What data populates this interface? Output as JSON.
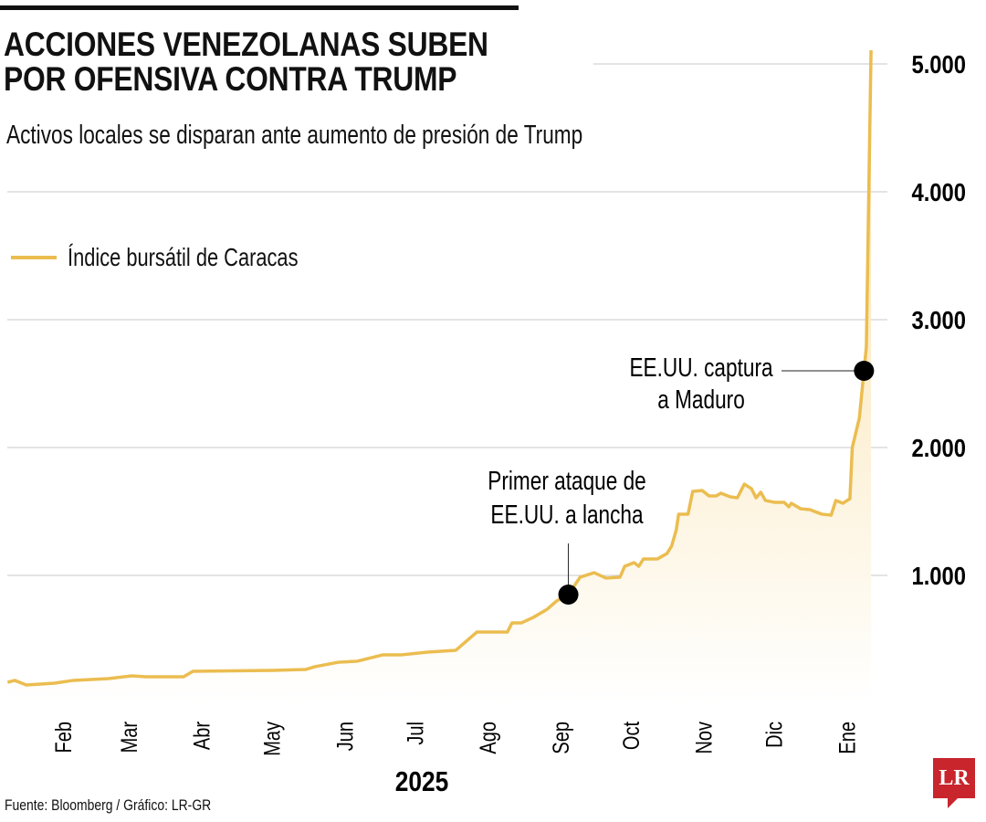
{
  "title_lines": [
    "ACCIONES VENEZOLANAS SUBEN",
    "POR OFENSIVA CONTRA TRUMP"
  ],
  "subtitle": "Activos locales se disparan ante aumento de presión de Trump",
  "source": "Fuente: Bloomberg / Gráfico: LR-GR",
  "logo_text": "LR",
  "colors": {
    "line": "#ebbd50",
    "fill_top": "#f9dd9c",
    "grid": "#c8c8c8",
    "marker": "#000000",
    "logo": "#c8252c"
  },
  "chart_data": {
    "type": "area",
    "title": "ACCIONES VENEZOLANAS SUBEN POR OFENSIVA CONTRA TRUMP",
    "subtitle": "Activos locales se disparan ante aumento de presión de Trump",
    "xlabel": "2025",
    "ylabel": "",
    "ylim": [
      0,
      5000
    ],
    "yticks": [
      1000,
      2000,
      3000,
      4000,
      5000
    ],
    "ytick_labels": [
      "1.000",
      "2.000",
      "3.000",
      "4.000",
      "5.000"
    ],
    "xticks": [
      "2025-02-01",
      "2025-03-01",
      "2025-04-01",
      "2025-05-01",
      "2025-06-01",
      "2025-07-01",
      "2025-08-01",
      "2025-09-01",
      "2025-10-01",
      "2025-11-01",
      "2025-12-01",
      "2026-01-01"
    ],
    "xtick_labels": [
      "Feb",
      "Mar",
      "Abr",
      "May",
      "Jun",
      "Jul",
      "Ago",
      "Sep",
      "Oct",
      "Nov",
      "Dic",
      "Ene"
    ],
    "grid": true,
    "legend": "top-left",
    "series": [
      {
        "name": "Índice bursátil de Caracas",
        "x": [
          "2025-01-08",
          "2025-01-11",
          "2025-01-16",
          "2025-01-28",
          "2025-02-05",
          "2025-02-20",
          "2025-03-02",
          "2025-03-08",
          "2025-03-24",
          "2025-03-28",
          "2025-05-01",
          "2025-05-15",
          "2025-05-19",
          "2025-05-29",
          "2025-06-06",
          "2025-06-17",
          "2025-06-25",
          "2025-07-06",
          "2025-07-18",
          "2025-07-27",
          "2025-08-09",
          "2025-08-11",
          "2025-08-15",
          "2025-08-20",
          "2025-08-26",
          "2025-08-30",
          "2025-09-04",
          "2025-09-09",
          "2025-09-15",
          "2025-09-20",
          "2025-09-26",
          "2025-09-28",
          "2025-10-02",
          "2025-10-04",
          "2025-10-06",
          "2025-10-12",
          "2025-10-16",
          "2025-10-18",
          "2025-10-20",
          "2025-10-21",
          "2025-10-25",
          "2025-10-27",
          "2025-10-31",
          "2025-11-03",
          "2025-11-06",
          "2025-11-08",
          "2025-11-12",
          "2025-11-15",
          "2025-11-18",
          "2025-11-21",
          "2025-11-23",
          "2025-11-25",
          "2025-11-27",
          "2025-12-01",
          "2025-12-05",
          "2025-12-07",
          "2025-12-08",
          "2025-12-12",
          "2025-12-16",
          "2025-12-21",
          "2025-12-25",
          "2025-12-27",
          "2025-12-30",
          "2026-01-02",
          "2026-01-03",
          "2026-01-06",
          "2026-01-08",
          "2026-01-09",
          "2026-01-11"
        ],
        "values": [
          164,
          179,
          143,
          157,
          179,
          193,
          214,
          207,
          207,
          250,
          257,
          264,
          286,
          321,
          329,
          379,
          379,
          400,
          414,
          557,
          557,
          629,
          629,
          671,
          736,
          800,
          850,
          986,
          1021,
          979,
          986,
          1071,
          1100,
          1071,
          1129,
          1129,
          1171,
          1229,
          1357,
          1479,
          1479,
          1657,
          1664,
          1621,
          1621,
          1643,
          1614,
          1607,
          1714,
          1679,
          1607,
          1650,
          1586,
          1571,
          1571,
          1536,
          1564,
          1521,
          1514,
          1479,
          1471,
          1586,
          1564,
          1600,
          2000,
          2229,
          2600,
          2786,
          5107
        ]
      }
    ],
    "annotations": [
      {
        "x": "2025-09-04",
        "y": 850,
        "text_lines": [
          "Primer ataque de",
          "EE.UU. a lancha"
        ]
      },
      {
        "x": "2026-01-08",
        "y": 2600,
        "text_lines": [
          "EE.UU. captura",
          "a Maduro"
        ]
      }
    ]
  }
}
